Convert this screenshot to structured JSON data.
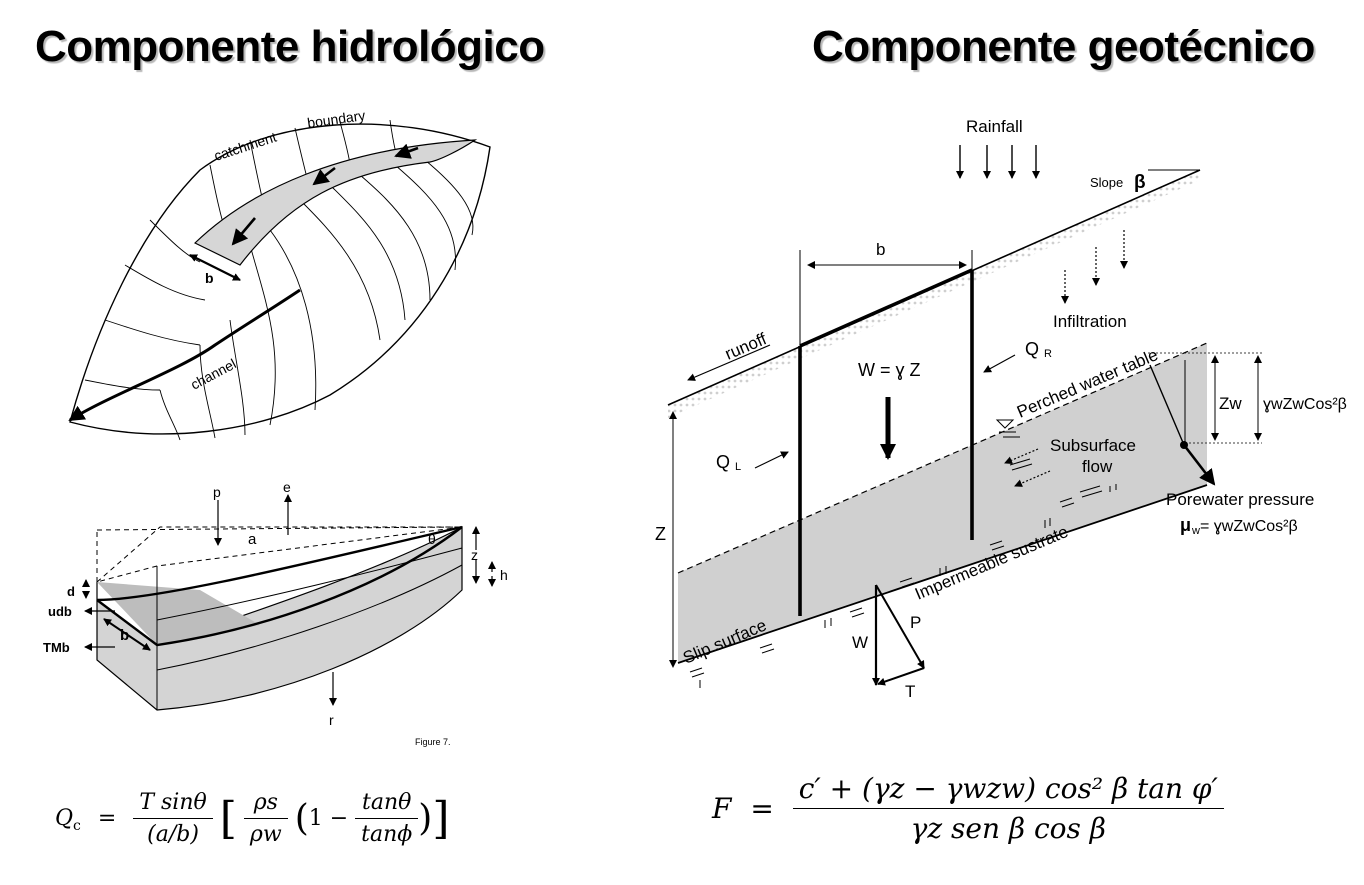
{
  "titles": {
    "left": "Componente hidrológico",
    "right": "Componente geotécnico"
  },
  "hydro_top": {
    "catchment": "catchment",
    "boundary": "boundary",
    "b": "b",
    "channel": "channel"
  },
  "hydro_block": {
    "p": "p",
    "e": "e",
    "a": "a",
    "theta": "θ",
    "z": "z",
    "h": "h",
    "d": "d",
    "udb": "udb",
    "b": "b",
    "TMb": "TMb",
    "r": "r",
    "caption": "Figure 7."
  },
  "geo": {
    "rainfall": "Rainfall",
    "slope": "Slope",
    "beta": "β",
    "b": "b",
    "infiltration": "Infiltration",
    "runoff": "runoff",
    "QR": "Q",
    "QR_sub": "R",
    "W_eq": "W = ɣ Z",
    "perched": "Perched water table",
    "Zw": "Zw",
    "pressure_expr": "ɣwZwCos²β",
    "QL": "Q",
    "QL_sub": "L",
    "subsurface": "Subsurface",
    "flow": "flow",
    "porewater": "Porewater pressure",
    "mu": "μ",
    "mu_sub": "w",
    "mu_rhs": "= ɣwZwCos²β",
    "Z": "Z",
    "impermeable": "Impermeable sustrate",
    "slip": "Slip surface",
    "W": "W",
    "P": "P",
    "T": "T"
  },
  "formulas": {
    "left": {
      "lhs": "Q",
      "lhs_sub": "c",
      "num": "T sinθ",
      "den": "(a/b)",
      "rho_num": "ρs",
      "rho_den": "ρw",
      "one_minus": "1 −",
      "tan_num": "tanθ",
      "tan_den": "tanϕ"
    },
    "right": {
      "lhs": "F",
      "num": "c′ + (γz − γwzw) cos² β tan φ′",
      "den": "γz sen β cos β"
    }
  }
}
